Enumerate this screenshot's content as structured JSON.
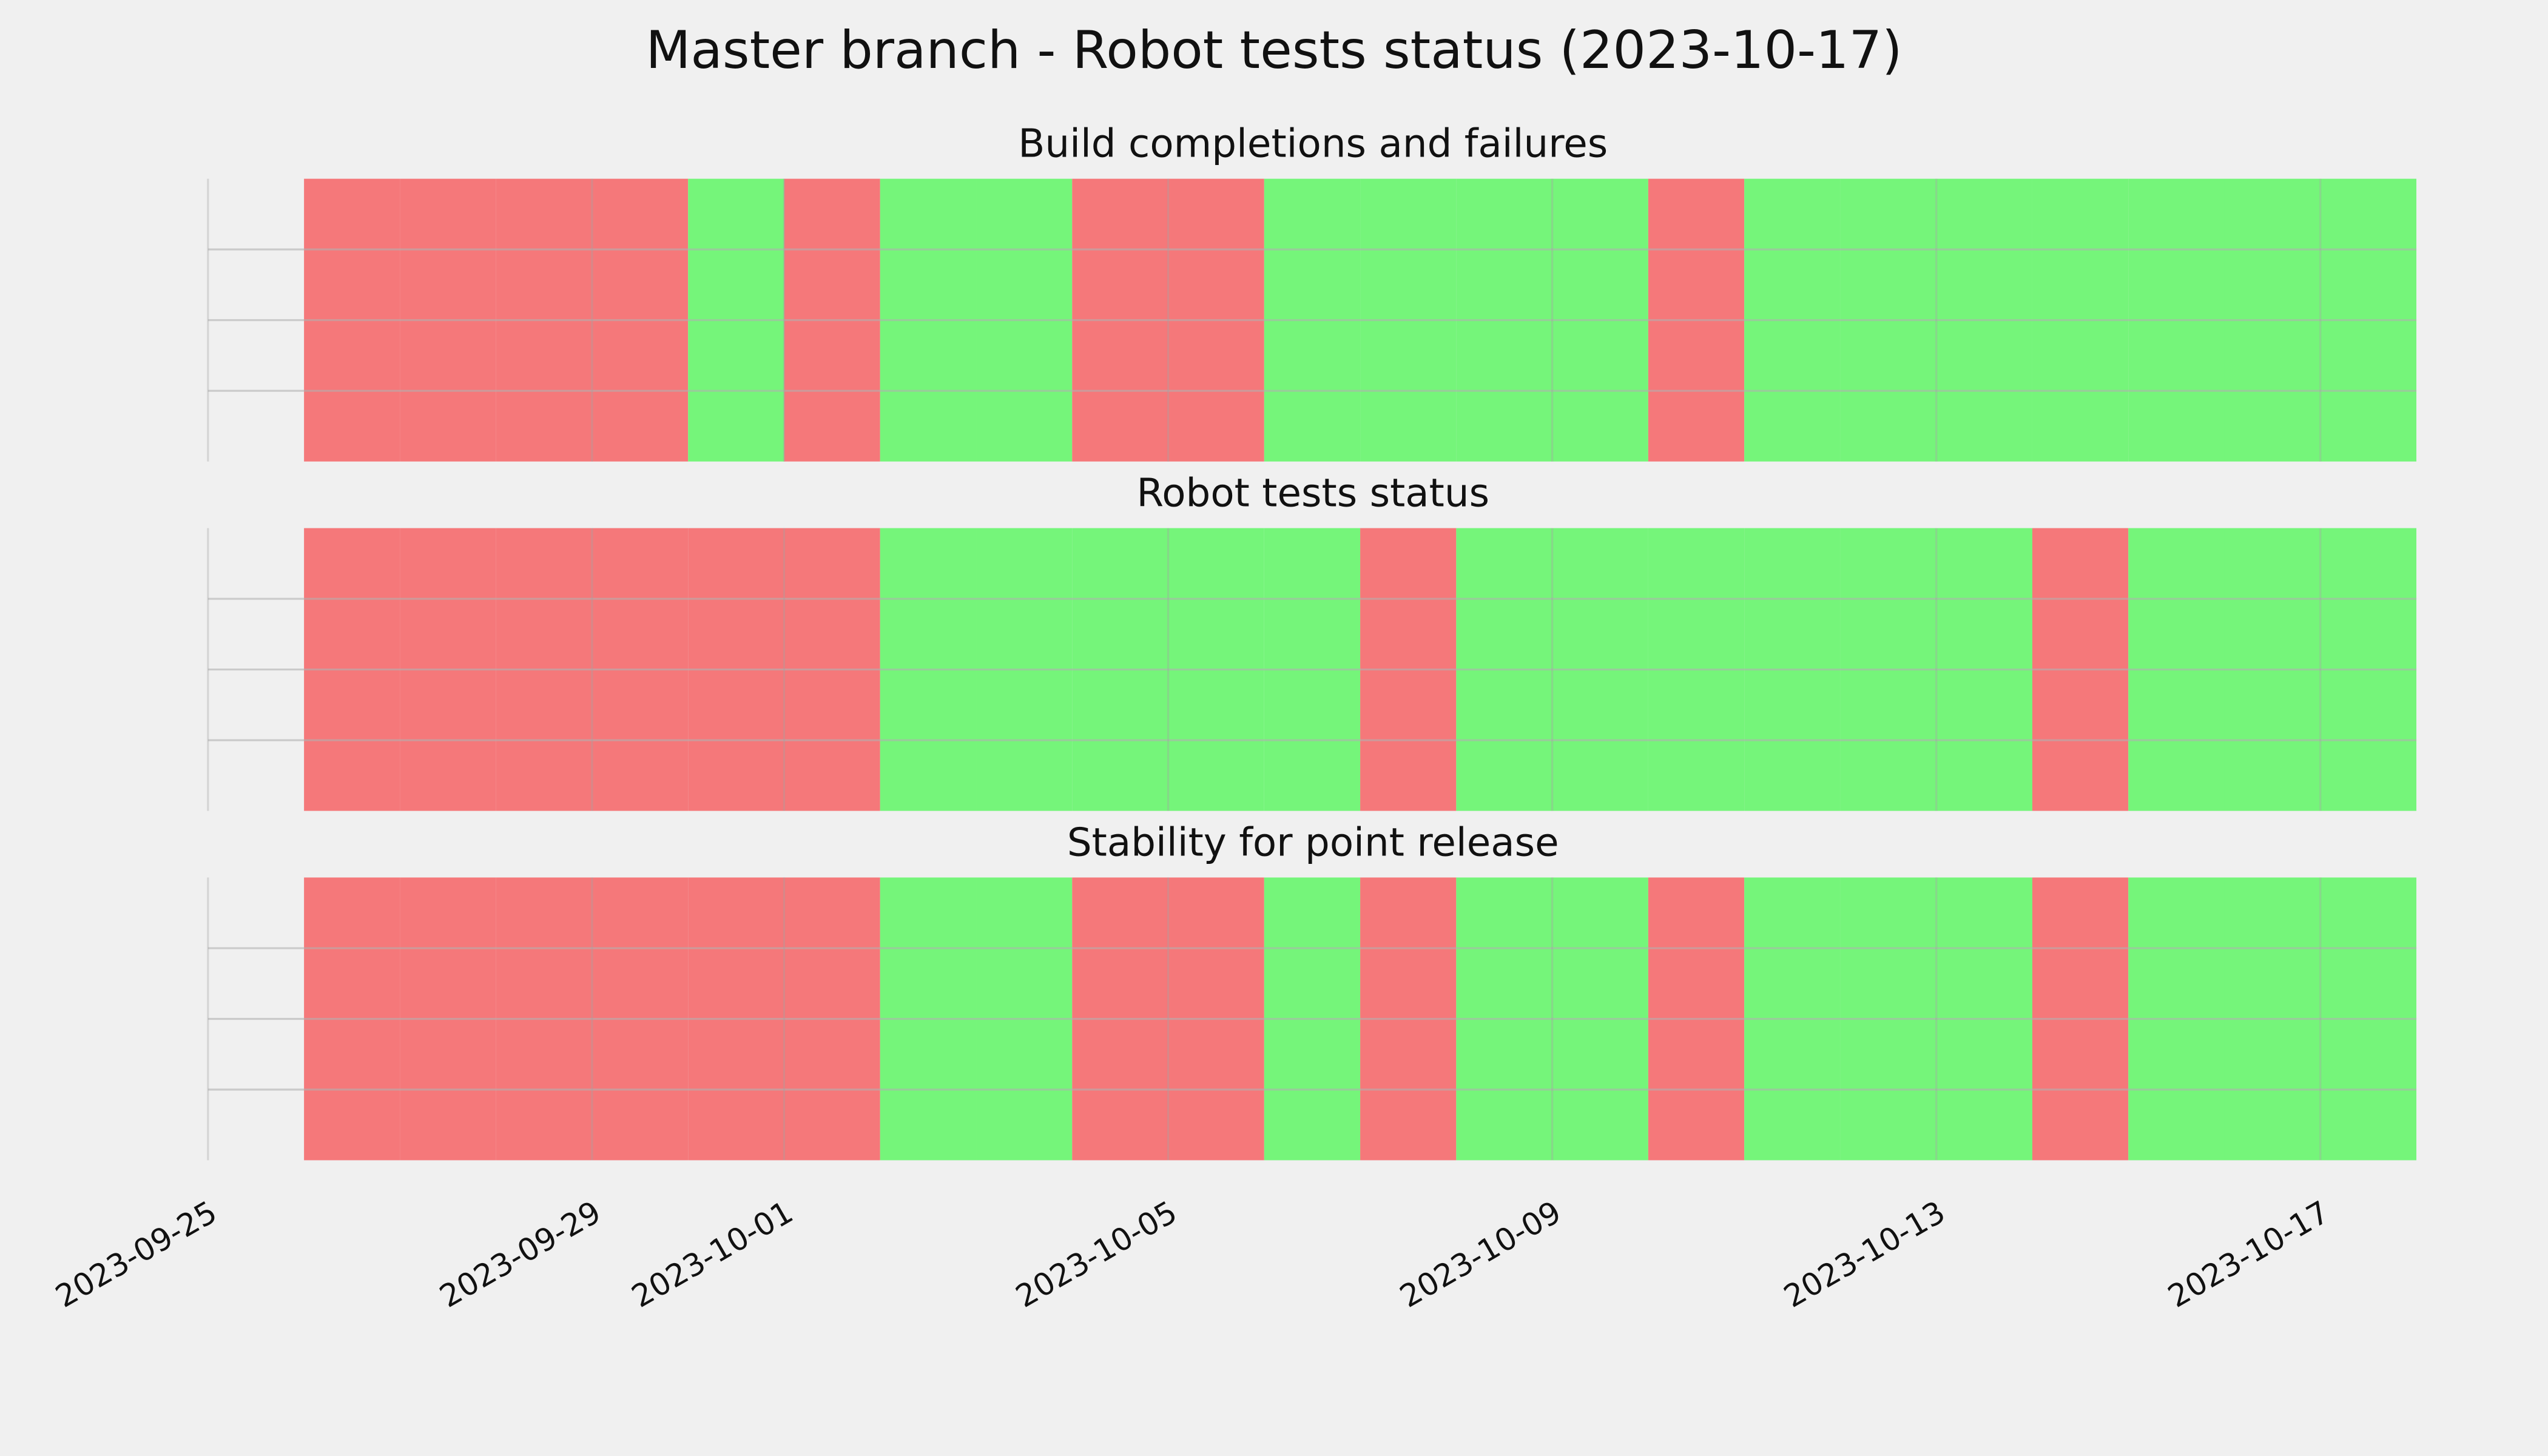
{
  "chart_data": {
    "type": "status-timeline",
    "title": "Master branch - Robot tests status (2023-10-17)",
    "x": [
      "2023-09-26",
      "2023-09-27",
      "2023-09-28",
      "2023-09-29",
      "2023-09-30",
      "2023-10-01",
      "2023-10-02",
      "2023-10-03",
      "2023-10-04",
      "2023-10-05",
      "2023-10-06",
      "2023-10-07",
      "2023-10-08",
      "2023-10-09",
      "2023-10-10",
      "2023-10-11",
      "2023-10-12",
      "2023-10-13",
      "2023-10-14",
      "2023-10-15",
      "2023-10-16",
      "2023-10-17"
    ],
    "xlim": [
      "2023-09-25",
      "2023-10-18"
    ],
    "xticks": [
      "2023-09-25",
      "2023-09-29",
      "2023-10-01",
      "2023-10-05",
      "2023-10-09",
      "2023-10-13",
      "2023-10-17"
    ],
    "ylim": [
      0,
      1
    ],
    "yticks": [
      0.25,
      0.5,
      0.75
    ],
    "grid": true,
    "pass_color": "#75f57a",
    "fail_color": "#f5787a",
    "series": [
      {
        "name": "Build completions and failures",
        "values": [
          0,
          0,
          0,
          0,
          1,
          0,
          1,
          1,
          0,
          0,
          1,
          1,
          1,
          1,
          0,
          1,
          1,
          1,
          1,
          1,
          1,
          1
        ]
      },
      {
        "name": "Robot tests status",
        "values": [
          0,
          0,
          0,
          0,
          0,
          0,
          1,
          1,
          1,
          1,
          1,
          0,
          1,
          1,
          1,
          1,
          1,
          1,
          0,
          1,
          1,
          1
        ]
      },
      {
        "name": "Stability for point release",
        "values": [
          0,
          0,
          0,
          0,
          0,
          0,
          1,
          1,
          0,
          0,
          1,
          0,
          1,
          1,
          0,
          1,
          1,
          1,
          0,
          1,
          1,
          1
        ]
      }
    ]
  }
}
